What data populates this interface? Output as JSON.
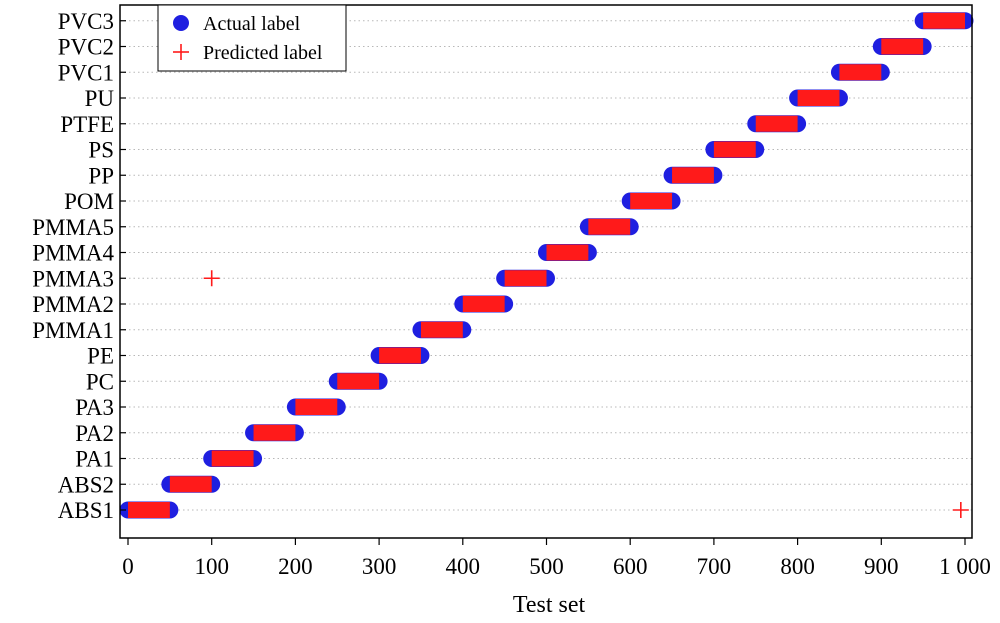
{
  "chart_data": {
    "type": "scatter",
    "xlabel": "Test set",
    "ylabel": "",
    "xlim": [
      0,
      1000
    ],
    "x_ticks": [
      0,
      100,
      200,
      300,
      400,
      500,
      600,
      700,
      800,
      900,
      1000
    ],
    "x_tick_labels": [
      "0",
      "100",
      "200",
      "300",
      "400",
      "500",
      "600",
      "700",
      "800",
      "900",
      "1 000"
    ],
    "categories": [
      "ABS1",
      "ABS2",
      "PA1",
      "PA2",
      "PA3",
      "PC",
      "PE",
      "PMMA1",
      "PMMA2",
      "PMMA3",
      "PMMA4",
      "PMMA5",
      "POM",
      "PP",
      "PS",
      "PTFE",
      "PU",
      "PVC1",
      "PVC2",
      "PVC3"
    ],
    "grid": "horizontal dotted",
    "legend_position": "top-left",
    "series": [
      {
        "name": "Actual label",
        "marker": "circle",
        "color": "#1f1fe0",
        "segments": [
          {
            "category": "ABS1",
            "x_start": 0,
            "x_end": 50
          },
          {
            "category": "ABS2",
            "x_start": 50,
            "x_end": 100
          },
          {
            "category": "PA1",
            "x_start": 100,
            "x_end": 150
          },
          {
            "category": "PA2",
            "x_start": 150,
            "x_end": 200
          },
          {
            "category": "PA3",
            "x_start": 200,
            "x_end": 250
          },
          {
            "category": "PC",
            "x_start": 250,
            "x_end": 300
          },
          {
            "category": "PE",
            "x_start": 300,
            "x_end": 350
          },
          {
            "category": "PMMA1",
            "x_start": 350,
            "x_end": 400
          },
          {
            "category": "PMMA2",
            "x_start": 400,
            "x_end": 450
          },
          {
            "category": "PMMA3",
            "x_start": 450,
            "x_end": 500
          },
          {
            "category": "PMMA4",
            "x_start": 500,
            "x_end": 550
          },
          {
            "category": "PMMA5",
            "x_start": 550,
            "x_end": 600
          },
          {
            "category": "POM",
            "x_start": 600,
            "x_end": 650
          },
          {
            "category": "PP",
            "x_start": 650,
            "x_end": 700
          },
          {
            "category": "PS",
            "x_start": 700,
            "x_end": 750
          },
          {
            "category": "PTFE",
            "x_start": 750,
            "x_end": 800
          },
          {
            "category": "PU",
            "x_start": 800,
            "x_end": 850
          },
          {
            "category": "PVC1",
            "x_start": 850,
            "x_end": 900
          },
          {
            "category": "PVC2",
            "x_start": 900,
            "x_end": 950
          },
          {
            "category": "PVC3",
            "x_start": 950,
            "x_end": 1000
          }
        ]
      },
      {
        "name": "Predicted label",
        "marker": "plus",
        "color": "#ff1a1a",
        "segments": [
          {
            "category": "ABS1",
            "x_start": 0,
            "x_end": 50
          },
          {
            "category": "ABS2",
            "x_start": 50,
            "x_end": 100
          },
          {
            "category": "PA1",
            "x_start": 100,
            "x_end": 150
          },
          {
            "category": "PA2",
            "x_start": 150,
            "x_end": 200
          },
          {
            "category": "PA3",
            "x_start": 200,
            "x_end": 250
          },
          {
            "category": "PC",
            "x_start": 250,
            "x_end": 300
          },
          {
            "category": "PE",
            "x_start": 300,
            "x_end": 350
          },
          {
            "category": "PMMA1",
            "x_start": 350,
            "x_end": 400
          },
          {
            "category": "PMMA2",
            "x_start": 400,
            "x_end": 450
          },
          {
            "category": "PMMA3",
            "x_start": 450,
            "x_end": 500
          },
          {
            "category": "PMMA4",
            "x_start": 500,
            "x_end": 550
          },
          {
            "category": "PMMA5",
            "x_start": 550,
            "x_end": 600
          },
          {
            "category": "POM",
            "x_start": 600,
            "x_end": 650
          },
          {
            "category": "PP",
            "x_start": 650,
            "x_end": 700
          },
          {
            "category": "PS",
            "x_start": 700,
            "x_end": 750
          },
          {
            "category": "PTFE",
            "x_start": 750,
            "x_end": 800
          },
          {
            "category": "PU",
            "x_start": 800,
            "x_end": 850
          },
          {
            "category": "PVC1",
            "x_start": 850,
            "x_end": 900
          },
          {
            "category": "PVC2",
            "x_start": 900,
            "x_end": 950
          },
          {
            "category": "PVC3",
            "x_start": 950,
            "x_end": 1000
          }
        ],
        "outliers": [
          {
            "x": 100,
            "category": "PMMA3"
          },
          {
            "x": 995,
            "category": "ABS1"
          }
        ]
      }
    ]
  }
}
